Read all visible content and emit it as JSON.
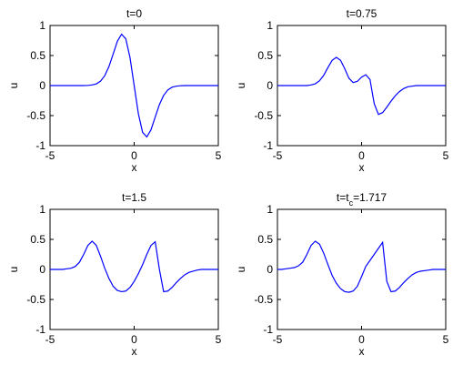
{
  "chart_data": [
    {
      "type": "line",
      "title": "t=0",
      "xlabel": "x",
      "ylabel": "u",
      "color": "#0000ff",
      "x": [
        -5,
        -4.75,
        -4.5,
        -4.25,
        -4,
        -3.75,
        -3.5,
        -3.25,
        -3,
        -2.75,
        -2.5,
        -2.25,
        -2,
        -1.75,
        -1.5,
        -1.25,
        -1,
        -0.75,
        -0.5,
        -0.25,
        0,
        0.25,
        0.5,
        0.75,
        1,
        1.25,
        1.5,
        1.75,
        2,
        2.25,
        2.5,
        2.75,
        3,
        3.25,
        3.5,
        3.75,
        4,
        4.25,
        4.5,
        4.75,
        5
      ],
      "values": [
        0,
        0,
        0,
        0,
        0,
        0,
        0,
        0,
        0,
        0.003,
        0.01,
        0.028,
        0.073,
        0.164,
        0.316,
        0.524,
        0.736,
        0.855,
        0.779,
        0.47,
        0,
        -0.47,
        -0.779,
        -0.855,
        -0.736,
        -0.524,
        -0.316,
        -0.164,
        -0.073,
        -0.028,
        -0.01,
        -0.003,
        0,
        0,
        0,
        0,
        0,
        0,
        0,
        0,
        0
      ],
      "xlim": [
        -5,
        5
      ],
      "xticks": [
        -5,
        0,
        5
      ],
      "ylim": [
        -1,
        1
      ],
      "yticks": [
        -1,
        -0.5,
        0,
        0.5,
        1
      ]
    },
    {
      "type": "line",
      "title": "t=0.75",
      "xlabel": "x",
      "ylabel": "u",
      "color": "#0000ff",
      "x": [
        -5,
        -4.75,
        -4.5,
        -4.25,
        -4,
        -3.75,
        -3.5,
        -3.25,
        -3,
        -2.75,
        -2.5,
        -2.25,
        -2,
        -1.75,
        -1.5,
        -1.25,
        -1,
        -0.75,
        -0.5,
        -0.25,
        0,
        0.25,
        0.5,
        0.75,
        1,
        1.25,
        1.5,
        1.75,
        2,
        2.25,
        2.5,
        2.75,
        3,
        3.25,
        3.5,
        3.75,
        4,
        4.25,
        4.5,
        4.75,
        5
      ],
      "values": [
        0,
        0,
        0,
        0,
        0,
        0,
        0,
        0,
        0.01,
        0.03,
        0.08,
        0.17,
        0.3,
        0.42,
        0.47,
        0.42,
        0.28,
        0.12,
        0.05,
        0.07,
        0.14,
        0.18,
        0.1,
        -0.3,
        -0.48,
        -0.45,
        -0.36,
        -0.26,
        -0.17,
        -0.1,
        -0.05,
        -0.02,
        -0.01,
        0,
        0,
        0,
        0,
        0,
        0,
        0,
        0
      ],
      "xlim": [
        -5,
        5
      ],
      "xticks": [
        -5,
        0,
        5
      ],
      "ylim": [
        -1,
        1
      ],
      "yticks": [
        -1,
        -0.5,
        0,
        0.5,
        1
      ]
    },
    {
      "type": "line",
      "title": "t=1.5",
      "xlabel": "x",
      "ylabel": "u",
      "color": "#0000ff",
      "x": [
        -5,
        -4.75,
        -4.5,
        -4.25,
        -4,
        -3.75,
        -3.5,
        -3.25,
        -3,
        -2.75,
        -2.5,
        -2.25,
        -2,
        -1.75,
        -1.5,
        -1.25,
        -1,
        -0.75,
        -0.5,
        -0.25,
        0,
        0.25,
        0.5,
        0.75,
        1,
        1.25,
        1.5,
        1.75,
        2,
        2.25,
        2.5,
        2.75,
        3,
        3.25,
        3.5,
        3.75,
        4,
        4.25,
        4.5,
        4.75,
        5
      ],
      "values": [
        0,
        0,
        0,
        0,
        0.01,
        0.02,
        0.05,
        0.12,
        0.25,
        0.4,
        0.47,
        0.4,
        0.22,
        0.02,
        -0.15,
        -0.28,
        -0.35,
        -0.37,
        -0.36,
        -0.3,
        -0.2,
        -0.07,
        0.08,
        0.25,
        0.4,
        0.46,
        0,
        -0.37,
        -0.36,
        -0.3,
        -0.22,
        -0.15,
        -0.09,
        -0.05,
        -0.03,
        -0.01,
        0,
        0,
        0,
        0,
        0
      ],
      "xlim": [
        -5,
        5
      ],
      "xticks": [
        -5,
        0,
        5
      ],
      "ylim": [
        -1,
        1
      ],
      "yticks": [
        -1,
        -0.5,
        0,
        0.5,
        1
      ]
    },
    {
      "type": "line",
      "title": [
        "t=t",
        "c",
        "=1.717"
      ],
      "xlabel": "x",
      "ylabel": "u",
      "color": "#0000ff",
      "x": [
        -5,
        -4.75,
        -4.5,
        -4.25,
        -4,
        -3.75,
        -3.5,
        -3.25,
        -3,
        -2.75,
        -2.5,
        -2.25,
        -2,
        -1.75,
        -1.5,
        -1.25,
        -1,
        -0.75,
        -0.5,
        -0.25,
        0,
        0.25,
        0.5,
        0.75,
        1,
        1.25,
        1.5,
        1.75,
        2,
        2.25,
        2.5,
        2.75,
        3,
        3.25,
        3.5,
        3.75,
        4,
        4.25,
        4.5,
        4.75,
        5
      ],
      "values": [
        0,
        0,
        0.01,
        0.02,
        0.03,
        0.06,
        0.12,
        0.25,
        0.4,
        0.47,
        0.42,
        0.27,
        0.08,
        -0.1,
        -0.23,
        -0.32,
        -0.37,
        -0.38,
        -0.36,
        -0.28,
        -0.12,
        0.05,
        0.15,
        0.25,
        0.35,
        0.45,
        -0.2,
        -0.37,
        -0.36,
        -0.3,
        -0.22,
        -0.15,
        -0.09,
        -0.05,
        -0.03,
        -0.02,
        -0.01,
        0,
        0,
        0,
        0
      ],
      "xlim": [
        -5,
        5
      ],
      "xticks": [
        -5,
        0,
        5
      ],
      "ylim": [
        -1,
        1
      ],
      "yticks": [
        -1,
        -0.5,
        0,
        0.5,
        1
      ]
    }
  ]
}
